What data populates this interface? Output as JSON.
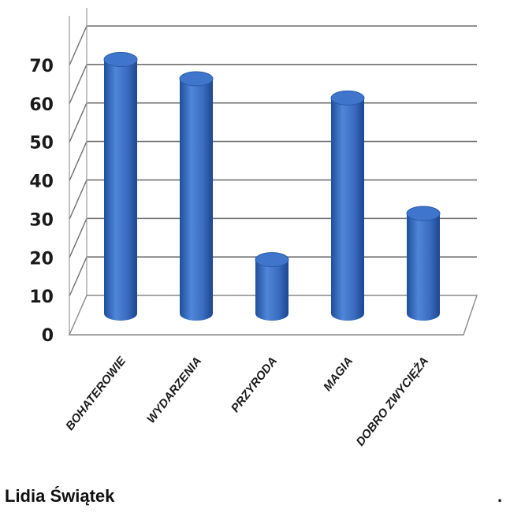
{
  "chart_data": {
    "type": "bar",
    "title": "",
    "xlabel": "",
    "ylabel": "",
    "categories": [
      "BOHATEROWIE",
      "WYDARZENIA",
      "PRZYRODA",
      "MAGIA",
      "DOBRO ZWYCIĘŻA"
    ],
    "values": [
      66,
      61,
      14,
      56,
      26
    ],
    "ylim": [
      0,
      70
    ],
    "yticks": [
      "0",
      "10",
      "20",
      "30",
      "40",
      "50",
      "60",
      "70"
    ],
    "grid": true,
    "legend": "none",
    "bar_shape": "cylinder",
    "bar_color": "#3b6fc2"
  },
  "footer": {
    "author": "Lidia Świątek",
    "trailing_mark": "."
  }
}
